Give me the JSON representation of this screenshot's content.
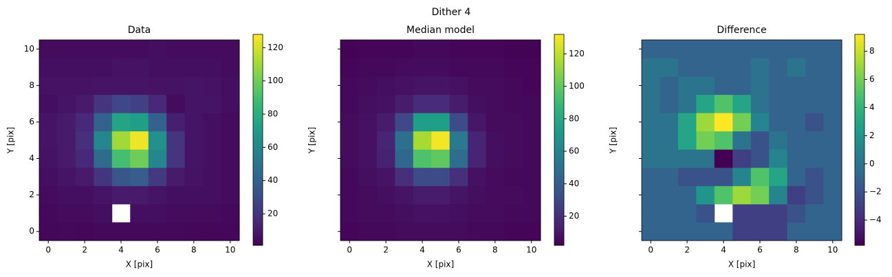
{
  "title": "Dither 4",
  "chart_data": [
    {
      "type": "heatmap",
      "title": "Data",
      "x_label": "X [pix]",
      "y_label": "Y [pix]",
      "x": [
        0,
        1,
        2,
        3,
        4,
        5,
        6,
        7,
        8,
        9,
        10
      ],
      "y": [
        0,
        1,
        2,
        3,
        4,
        5,
        6,
        7,
        8,
        9,
        10
      ],
      "xlim": [
        -0.5,
        10.5
      ],
      "ylim": [
        -0.5,
        10.5
      ],
      "xticks": [
        0,
        2,
        4,
        6,
        8,
        10
      ],
      "yticks": [
        0,
        2,
        4,
        6,
        8,
        10
      ],
      "ytick_labels": true,
      "colormap": "viridis",
      "zlim": [
        1,
        128
      ],
      "zticks": [
        20,
        40,
        60,
        80,
        100,
        120
      ],
      "z": [
        [
          3,
          4,
          3,
          4,
          4,
          4,
          4,
          4,
          3,
          3,
          3
        ],
        [
          4,
          5,
          5,
          6,
          null,
          6,
          6,
          5,
          5,
          5,
          4
        ],
        [
          5,
          6,
          6,
          8,
          10,
          10,
          8,
          6,
          6,
          6,
          5
        ],
        [
          6,
          8,
          10,
          20,
          35,
          38,
          22,
          10,
          7,
          6,
          5
        ],
        [
          7,
          10,
          15,
          45,
          90,
          100,
          60,
          20,
          8,
          6,
          5
        ],
        [
          8,
          10,
          18,
          60,
          110,
          125,
          65,
          20,
          8,
          6,
          5
        ],
        [
          8,
          10,
          15,
          40,
          75,
          72,
          40,
          12,
          8,
          6,
          5
        ],
        [
          6,
          8,
          10,
          20,
          28,
          25,
          15,
          5,
          8,
          8,
          6
        ],
        [
          7,
          7,
          7,
          8,
          8,
          8,
          7,
          7,
          8,
          7,
          6
        ],
        [
          6,
          6,
          6,
          6,
          7,
          7,
          6,
          6,
          6,
          6,
          5
        ],
        [
          5,
          5,
          5,
          5,
          5,
          5,
          6,
          5,
          5,
          5,
          5
        ]
      ]
    },
    {
      "type": "heatmap",
      "title": "Median model",
      "x_label": "X [pix]",
      "y_label": "Y [pix]",
      "x": [
        0,
        1,
        2,
        3,
        4,
        5,
        6,
        7,
        8,
        9,
        10
      ],
      "y": [
        0,
        1,
        2,
        3,
        4,
        5,
        6,
        7,
        8,
        9,
        10
      ],
      "xlim": [
        -0.5,
        10.5
      ],
      "ylim": [
        -0.5,
        10.5
      ],
      "xticks": [
        0,
        2,
        4,
        6,
        8,
        10
      ],
      "yticks": [
        0,
        2,
        4,
        6,
        8,
        10
      ],
      "ytick_labels": false,
      "colormap": "viridis",
      "zlim": [
        2,
        132
      ],
      "zticks": [
        20,
        40,
        60,
        80,
        100,
        120
      ],
      "z": [
        [
          4,
          5,
          5,
          6,
          6,
          6,
          6,
          5,
          5,
          4,
          4
        ],
        [
          5,
          6,
          6,
          7,
          8,
          8,
          7,
          6,
          6,
          5,
          5
        ],
        [
          5,
          6,
          7,
          9,
          12,
          12,
          9,
          7,
          6,
          6,
          5
        ],
        [
          5,
          7,
          9,
          20,
          32,
          32,
          20,
          8,
          6,
          5,
          5
        ],
        [
          6,
          8,
          14,
          45,
          95,
          100,
          48,
          15,
          7,
          6,
          5
        ],
        [
          6,
          8,
          15,
          50,
          115,
          130,
          55,
          15,
          7,
          6,
          5
        ],
        [
          6,
          8,
          12,
          30,
          75,
          75,
          32,
          10,
          6,
          6,
          5
        ],
        [
          5,
          7,
          8,
          12,
          18,
          18,
          12,
          7,
          6,
          5,
          5
        ],
        [
          5,
          6,
          7,
          8,
          9,
          9,
          8,
          6,
          6,
          5,
          4
        ],
        [
          4,
          5,
          5,
          6,
          6,
          6,
          5,
          5,
          5,
          4,
          4
        ],
        [
          3,
          4,
          4,
          4,
          5,
          5,
          4,
          4,
          4,
          3,
          3
        ]
      ]
    },
    {
      "type": "heatmap",
      "title": "Difference",
      "x_label": "X [pix]",
      "y_label": "Y [pix]",
      "x": [
        0,
        1,
        2,
        3,
        4,
        5,
        6,
        7,
        8,
        9,
        10
      ],
      "y": [
        0,
        1,
        2,
        3,
        4,
        5,
        6,
        7,
        8,
        9,
        10
      ],
      "xlim": [
        -0.5,
        10.5
      ],
      "ylim": [
        -0.5,
        10.5
      ],
      "xticks": [
        0,
        2,
        4,
        6,
        8,
        10
      ],
      "yticks": [
        0,
        2,
        4,
        6,
        8,
        10
      ],
      "ytick_labels": false,
      "colormap": "viridis",
      "zlim": [
        -5.8,
        9.2
      ],
      "zticks": [
        {
          "value": -4,
          "label": "−4"
        },
        {
          "value": -2,
          "label": "−2"
        },
        0,
        2,
        4,
        6,
        8
      ],
      "z": [
        [
          -1,
          -1,
          -1,
          -1,
          -1,
          -3,
          -3,
          -3,
          -1,
          -1,
          -1
        ],
        [
          -1,
          -1,
          -1,
          -2,
          null,
          -3,
          -3,
          -3,
          -2,
          -1,
          -1
        ],
        [
          -1,
          -1,
          -1,
          2,
          5,
          7,
          6,
          1,
          -3,
          -2,
          -1
        ],
        [
          -1,
          -1,
          -2,
          -2,
          -2,
          1,
          5,
          3,
          -1,
          -2,
          -1
        ],
        [
          0,
          0,
          0,
          0,
          -5.8,
          -3,
          -2,
          1,
          -1,
          -1,
          -1
        ],
        [
          0,
          0,
          3,
          6,
          5,
          0,
          -2,
          0,
          -1,
          -1,
          -1
        ],
        [
          0,
          0,
          3,
          7,
          9.2,
          6,
          1,
          -1,
          -1,
          -2,
          -1
        ],
        [
          0,
          -1,
          0,
          3,
          5,
          3,
          0,
          -1,
          -1,
          -1,
          -1
        ],
        [
          0,
          -1,
          0,
          0,
          -1,
          -1,
          0,
          -1,
          -1,
          -1,
          -1
        ],
        [
          0,
          0,
          -1,
          -1,
          -1,
          -1,
          0,
          -1,
          0,
          -1,
          -1
        ],
        [
          -1,
          -1,
          -1,
          -1,
          -1,
          -1,
          -1,
          -1,
          -1,
          -1,
          -1
        ]
      ]
    }
  ]
}
